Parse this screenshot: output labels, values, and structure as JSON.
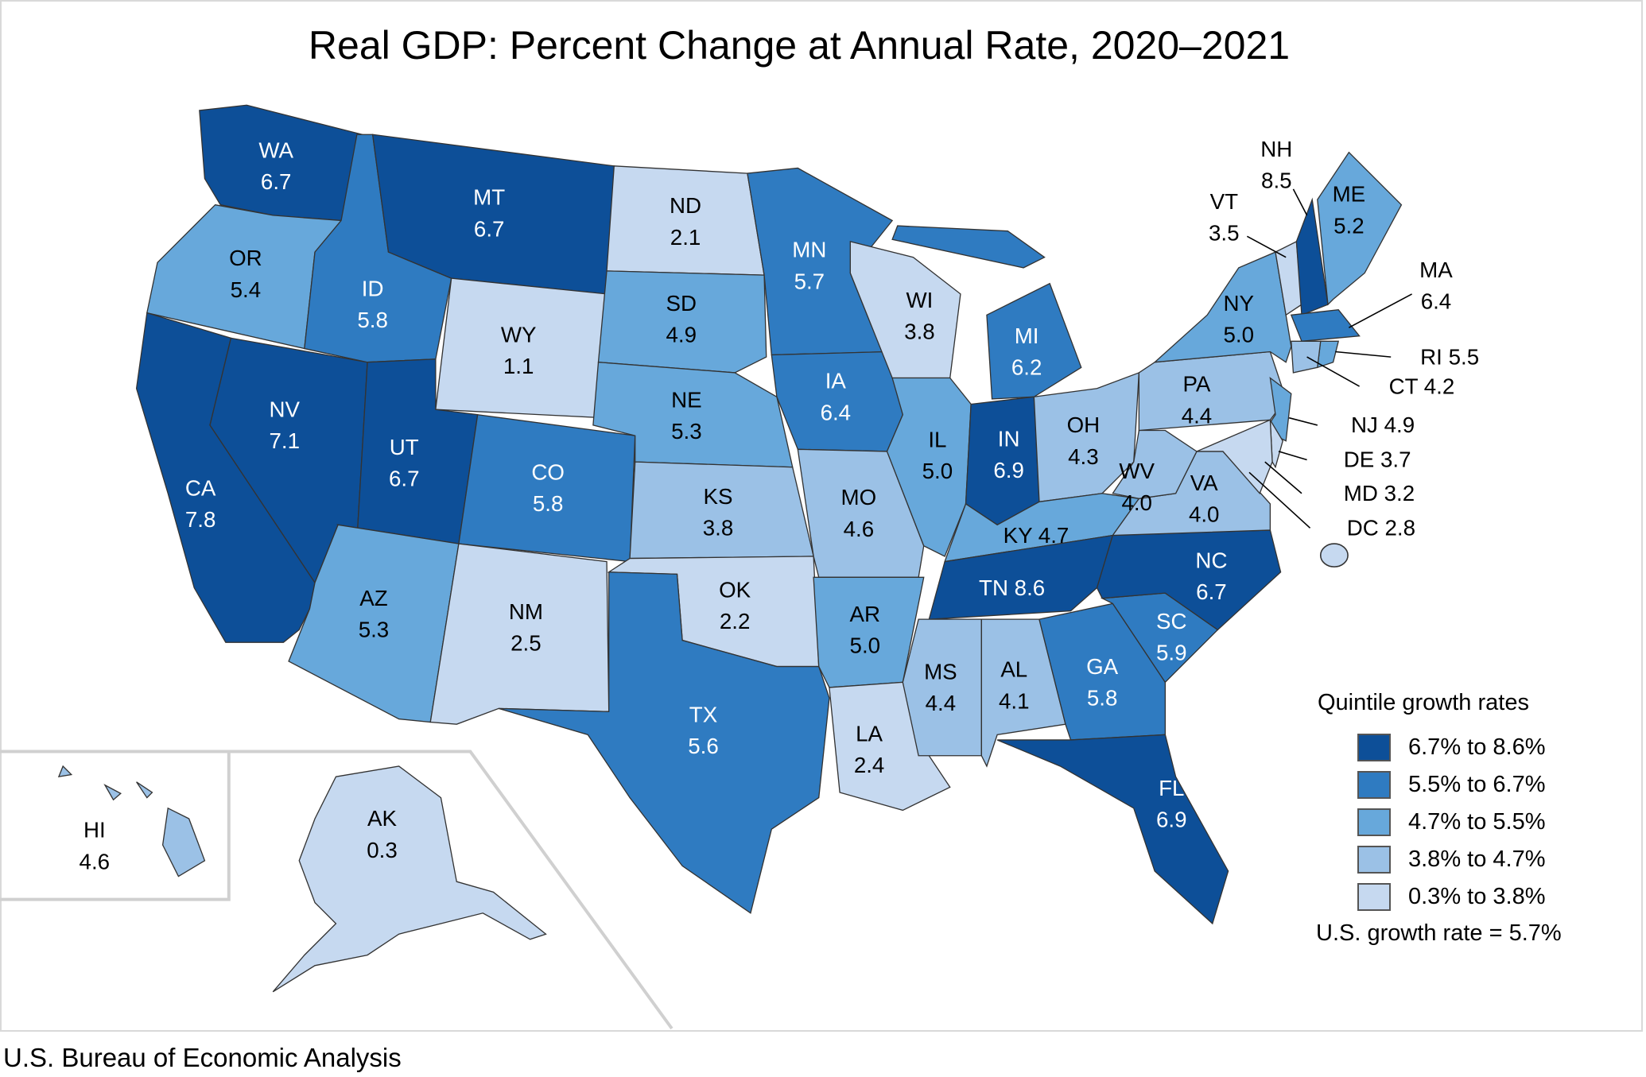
{
  "title": "Real GDP: Percent Change at Annual Rate, 2020–2021",
  "source": "U.S. Bureau of Economic Analysis",
  "legend": {
    "title": "Quintile growth rates",
    "items": [
      {
        "label": "6.7% to 8.6%",
        "color": "#0d4f98"
      },
      {
        "label": "5.5% to 6.7%",
        "color": "#2f7bc1"
      },
      {
        "label": "4.7% to 5.5%",
        "color": "#67a8db"
      },
      {
        "label": "3.8% to 4.7%",
        "color": "#9bc1e6"
      },
      {
        "label": "0.3% to 3.8%",
        "color": "#c6d9f0"
      }
    ],
    "us_rate": "U.S. growth rate = 5.7%"
  },
  "states": [
    {
      "abbr": "WA",
      "value": "6.7",
      "quintile": 0
    },
    {
      "abbr": "OR",
      "value": "5.4",
      "quintile": 2
    },
    {
      "abbr": "CA",
      "value": "7.8",
      "quintile": 0
    },
    {
      "abbr": "NV",
      "value": "7.1",
      "quintile": 0
    },
    {
      "abbr": "ID",
      "value": "5.8",
      "quintile": 1
    },
    {
      "abbr": "MT",
      "value": "6.7",
      "quintile": 0
    },
    {
      "abbr": "WY",
      "value": "1.1",
      "quintile": 4
    },
    {
      "abbr": "UT",
      "value": "6.7",
      "quintile": 0
    },
    {
      "abbr": "CO",
      "value": "5.8",
      "quintile": 1
    },
    {
      "abbr": "AZ",
      "value": "5.3",
      "quintile": 2
    },
    {
      "abbr": "NM",
      "value": "2.5",
      "quintile": 4
    },
    {
      "abbr": "ND",
      "value": "2.1",
      "quintile": 4
    },
    {
      "abbr": "SD",
      "value": "4.9",
      "quintile": 2
    },
    {
      "abbr": "NE",
      "value": "5.3",
      "quintile": 2
    },
    {
      "abbr": "KS",
      "value": "3.8",
      "quintile": 3
    },
    {
      "abbr": "OK",
      "value": "2.2",
      "quintile": 4
    },
    {
      "abbr": "TX",
      "value": "5.6",
      "quintile": 1
    },
    {
      "abbr": "MN",
      "value": "5.7",
      "quintile": 1
    },
    {
      "abbr": "IA",
      "value": "6.4",
      "quintile": 1
    },
    {
      "abbr": "MO",
      "value": "4.6",
      "quintile": 3
    },
    {
      "abbr": "AR",
      "value": "5.0",
      "quintile": 2
    },
    {
      "abbr": "LA",
      "value": "2.4",
      "quintile": 4
    },
    {
      "abbr": "WI",
      "value": "3.8",
      "quintile": 4
    },
    {
      "abbr": "IL",
      "value": "5.0",
      "quintile": 2
    },
    {
      "abbr": "MI",
      "value": "6.2",
      "quintile": 1
    },
    {
      "abbr": "IN",
      "value": "6.9",
      "quintile": 0
    },
    {
      "abbr": "OH",
      "value": "4.3",
      "quintile": 3
    },
    {
      "abbr": "KY",
      "value": "4.7",
      "quintile": 2
    },
    {
      "abbr": "TN",
      "value": "8.6",
      "quintile": 0
    },
    {
      "abbr": "MS",
      "value": "4.4",
      "quintile": 3
    },
    {
      "abbr": "AL",
      "value": "4.1",
      "quintile": 3
    },
    {
      "abbr": "GA",
      "value": "5.8",
      "quintile": 1
    },
    {
      "abbr": "FL",
      "value": "6.9",
      "quintile": 0
    },
    {
      "abbr": "SC",
      "value": "5.9",
      "quintile": 1
    },
    {
      "abbr": "NC",
      "value": "6.7",
      "quintile": 0
    },
    {
      "abbr": "VA",
      "value": "4.0",
      "quintile": 3
    },
    {
      "abbr": "WV",
      "value": "4.0",
      "quintile": 3
    },
    {
      "abbr": "PA",
      "value": "4.4",
      "quintile": 3
    },
    {
      "abbr": "NY",
      "value": "5.0",
      "quintile": 2
    },
    {
      "abbr": "NJ",
      "value": "4.9",
      "quintile": 2
    },
    {
      "abbr": "DE",
      "value": "3.7",
      "quintile": 4
    },
    {
      "abbr": "MD",
      "value": "3.2",
      "quintile": 4
    },
    {
      "abbr": "DC",
      "value": "2.8",
      "quintile": 4
    },
    {
      "abbr": "VT",
      "value": "3.5",
      "quintile": 4
    },
    {
      "abbr": "NH",
      "value": "8.5",
      "quintile": 0
    },
    {
      "abbr": "ME",
      "value": "5.2",
      "quintile": 2
    },
    {
      "abbr": "MA",
      "value": "6.4",
      "quintile": 1
    },
    {
      "abbr": "RI",
      "value": "5.5",
      "quintile": 2
    },
    {
      "abbr": "CT",
      "value": "4.2",
      "quintile": 3
    },
    {
      "abbr": "AK",
      "value": "0.3",
      "quintile": 4
    },
    {
      "abbr": "HI",
      "value": "4.6",
      "quintile": 3
    }
  ]
}
